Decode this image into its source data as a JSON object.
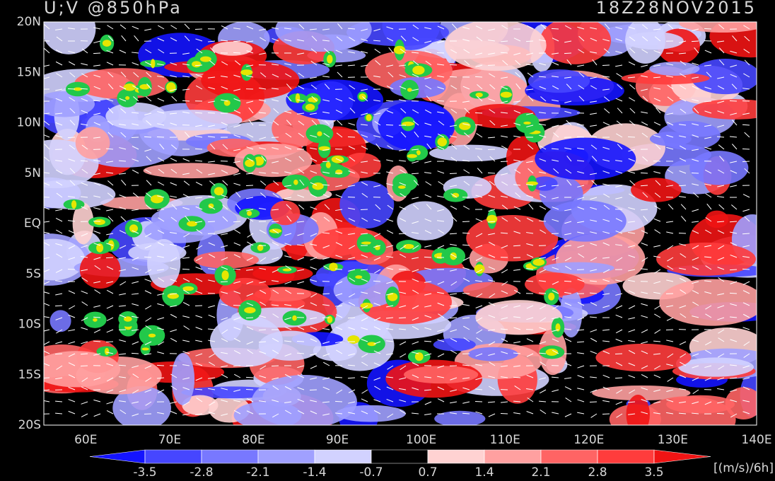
{
  "header": {
    "title": "U;V @850hPa",
    "time": "18Z28NOV2015"
  },
  "map": {
    "lat_labels": [
      "20N",
      "15N",
      "10N",
      "5N",
      "EQ",
      "5S",
      "10S",
      "15S",
      "20S"
    ],
    "lon_labels": [
      "60E",
      "70E",
      "80E",
      "90E",
      "100E",
      "110E",
      "120E",
      "130E",
      "140E"
    ]
  },
  "colorbar": {
    "levels": [
      -3.5,
      -2.8,
      -2.1,
      -1.4,
      -0.7,
      0.7,
      1.4,
      2.1,
      2.8,
      3.5
    ],
    "colors": [
      "#1414ff",
      "#4646ff",
      "#7878ff",
      "#a0a0ff",
      "#d2d2ff",
      "#000000",
      "#ffd2d2",
      "#ffa0a0",
      "#ff6464",
      "#ff3c3c",
      "#f01414"
    ],
    "units": "[(m/s)/6h]"
  }
}
